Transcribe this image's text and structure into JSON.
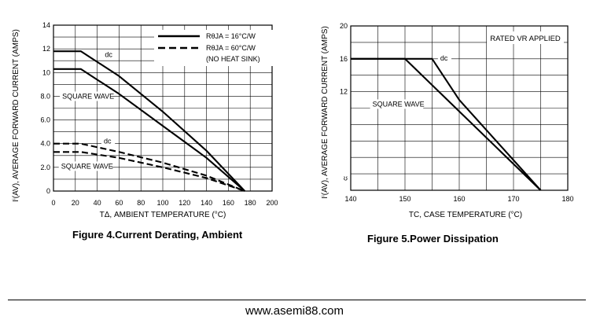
{
  "chart_data": [
    {
      "type": "line",
      "xlabel": "TΔ, AMBIENT TEMPERATURE (°C)",
      "ylabel": "Iⁱ(AV), AVERAGE FORWARD CURRENT (AMPS)",
      "xlim": [
        0,
        200
      ],
      "ylim": [
        0,
        14
      ],
      "x_ticks": [
        "0",
        "20",
        "40",
        "60",
        "80",
        "100",
        "120",
        "140",
        "160",
        "180",
        "200"
      ],
      "y_ticks": [
        "0",
        "2.0",
        "4.0",
        "6.0",
        "8.0",
        "10",
        "12",
        "14"
      ],
      "grid": true,
      "legend": [
        {
          "label": "RθJA = 16°C/W",
          "style": "solid"
        },
        {
          "label": "RθJA = 60°C/W",
          "style": "dashed"
        },
        {
          "label": "(NO HEAT SINK)",
          "style": "none"
        }
      ],
      "legend_position": "top-right",
      "series": [
        {
          "name": "dc",
          "style": "solid",
          "x": [
            0,
            25,
            60,
            100,
            140,
            175
          ],
          "y": [
            11.8,
            11.8,
            9.7,
            6.7,
            3.4,
            0
          ]
        },
        {
          "name": "SQUARE WAVE",
          "style": "solid",
          "x": [
            0,
            25,
            60,
            100,
            140,
            175
          ],
          "y": [
            10.3,
            10.3,
            8.2,
            5.5,
            2.8,
            0
          ]
        },
        {
          "name": "dc",
          "style": "dashed",
          "x": [
            0,
            25,
            60,
            100,
            140,
            175
          ],
          "y": [
            4.0,
            4.0,
            3.3,
            2.4,
            1.3,
            0
          ]
        },
        {
          "name": "SQUARE WAVE",
          "style": "dashed",
          "x": [
            0,
            25,
            60,
            100,
            140,
            175
          ],
          "y": [
            3.3,
            3.3,
            2.8,
            2.0,
            1.1,
            0
          ]
        }
      ],
      "annotations": [
        {
          "text": "dc",
          "x": 47,
          "y": 11.3
        },
        {
          "text": "SQUARE WAVE",
          "x": 8,
          "y": 7.8
        },
        {
          "text": "dc",
          "x": 46,
          "y": 4.0
        },
        {
          "text": "SQUARE WAVE",
          "x": 7,
          "y": 1.9
        }
      ]
    },
    {
      "type": "line",
      "xlabel": "TC, CASE TEMPERATURE (°C)",
      "ylabel": "Iⁱ(AV), AVERAGE FORWARD CURRENT (AMPS)",
      "xlim": [
        140,
        180
      ],
      "ylim": [
        0,
        20
      ],
      "x_ticks": [
        "140",
        "150",
        "160",
        "170",
        "180"
      ],
      "y_ticks": [
        "ʊ",
        "12",
        "16",
        "20"
      ],
      "grid": true,
      "annotations_text": "RATED VR APPLIED",
      "series": [
        {
          "name": "dc",
          "x": [
            140,
            155,
            160,
            175
          ],
          "y": [
            16,
            16,
            11,
            0
          ]
        },
        {
          "name": "SQUARE WAVE",
          "x": [
            140,
            150,
            175
          ],
          "y": [
            16,
            16,
            0
          ]
        }
      ],
      "annotations": [
        {
          "text": "dc",
          "x": 156.5,
          "y": 15.8
        },
        {
          "text": "SQUARE WAVE",
          "x": 144,
          "y": 10.2
        }
      ]
    }
  ],
  "captions": {
    "fig4": "Figure 4.Current  Derating, Ambient",
    "fig5": "Figure 5.Power  Dissipation"
  },
  "footer": {
    "url": "www.asemi88.com"
  }
}
